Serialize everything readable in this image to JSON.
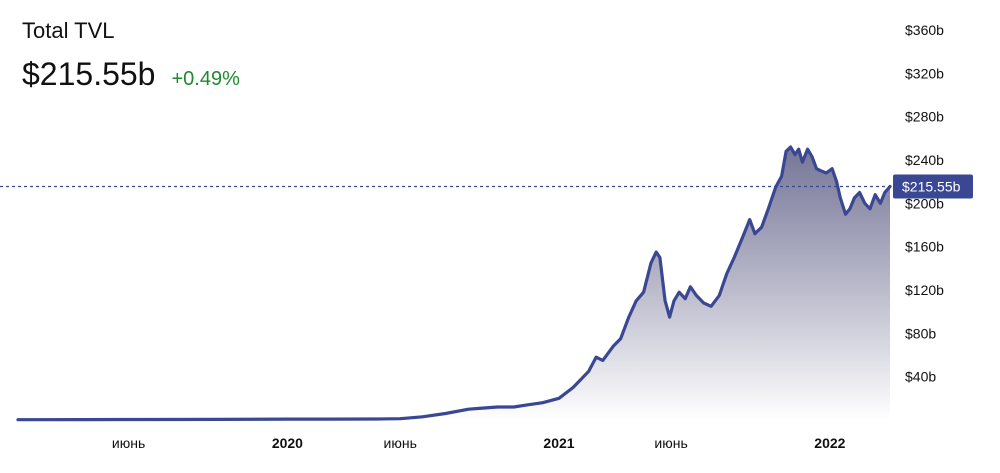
{
  "header": {
    "title": "Total TVL",
    "current_value": "$215.55b",
    "change": "+0.49%",
    "change_color": "#1e8a2e"
  },
  "colors": {
    "line": "#3a4793",
    "area_top": "#6e6e92",
    "marker_bg": "#3a4793"
  },
  "chart_data": {
    "type": "area",
    "title": "Total TVL",
    "xlabel": "",
    "ylabel": "",
    "x_ticks": [
      {
        "date": "2019-06-01",
        "label": "июнь"
      },
      {
        "date": "2020-01-01",
        "label": "2020"
      },
      {
        "date": "2020-06-01",
        "label": "июнь"
      },
      {
        "date": "2021-01-01",
        "label": "2021"
      },
      {
        "date": "2021-06-01",
        "label": "июнь"
      },
      {
        "date": "2022-01-01",
        "label": "2022"
      }
    ],
    "y_ticks": [
      {
        "value": 40,
        "label": "$40b"
      },
      {
        "value": 80,
        "label": "$80b"
      },
      {
        "value": 120,
        "label": "$120b"
      },
      {
        "value": 160,
        "label": "$160b"
      },
      {
        "value": 200,
        "label": "$200b"
      },
      {
        "value": 240,
        "label": "$240b"
      },
      {
        "value": 280,
        "label": "$280b"
      },
      {
        "value": 320,
        "label": "$320b"
      },
      {
        "value": 360,
        "label": "$360b"
      }
    ],
    "xlim": [
      "2019-01-03",
      "2022-03-23"
    ],
    "ylim": [
      0,
      365
    ],
    "current": {
      "value": 215.55,
      "label": "$215.55b"
    },
    "series": [
      {
        "values": [
          [
            "2019-01-03",
            0.3
          ],
          [
            "2019-04-01",
            0.4
          ],
          [
            "2019-07-01",
            0.5
          ],
          [
            "2019-10-01",
            0.6
          ],
          [
            "2020-01-01",
            0.8
          ],
          [
            "2020-03-01",
            0.8
          ],
          [
            "2020-05-01",
            0.9
          ],
          [
            "2020-06-01",
            1.2
          ],
          [
            "2020-07-01",
            3.0
          ],
          [
            "2020-08-01",
            6.0
          ],
          [
            "2020-09-01",
            10.0
          ],
          [
            "2020-09-20",
            11.0
          ],
          [
            "2020-10-10",
            12.0
          ],
          [
            "2020-11-01",
            12.0
          ],
          [
            "2020-11-20",
            14.0
          ],
          [
            "2020-12-10",
            16.0
          ],
          [
            "2021-01-01",
            20.0
          ],
          [
            "2021-01-20",
            30.0
          ],
          [
            "2021-02-10",
            45.0
          ],
          [
            "2021-02-20",
            58.0
          ],
          [
            "2021-03-01",
            55.0
          ],
          [
            "2021-03-15",
            68.0
          ],
          [
            "2021-03-25",
            75.0
          ],
          [
            "2021-04-05",
            95.0
          ],
          [
            "2021-04-15",
            110.0
          ],
          [
            "2021-04-25",
            118.0
          ],
          [
            "2021-05-05",
            145.0
          ],
          [
            "2021-05-12",
            155.0
          ],
          [
            "2021-05-17",
            150.0
          ],
          [
            "2021-05-24",
            110.0
          ],
          [
            "2021-05-30",
            95.0
          ],
          [
            "2021-06-05",
            110.0
          ],
          [
            "2021-06-12",
            118.0
          ],
          [
            "2021-06-20",
            112.0
          ],
          [
            "2021-06-27",
            123.0
          ],
          [
            "2021-07-05",
            115.0
          ],
          [
            "2021-07-15",
            108.0
          ],
          [
            "2021-07-25",
            105.0
          ],
          [
            "2021-08-05",
            115.0
          ],
          [
            "2021-08-15",
            135.0
          ],
          [
            "2021-08-25",
            150.0
          ],
          [
            "2021-09-05",
            168.0
          ],
          [
            "2021-09-15",
            185.0
          ],
          [
            "2021-09-22",
            172.0
          ],
          [
            "2021-10-01",
            178.0
          ],
          [
            "2021-10-10",
            195.0
          ],
          [
            "2021-10-20",
            215.0
          ],
          [
            "2021-10-28",
            225.0
          ],
          [
            "2021-11-03",
            248.0
          ],
          [
            "2021-11-09",
            252.0
          ],
          [
            "2021-11-15",
            245.0
          ],
          [
            "2021-11-20",
            250.0
          ],
          [
            "2021-11-25",
            238.0
          ],
          [
            "2021-12-02",
            250.0
          ],
          [
            "2021-12-08",
            243.0
          ],
          [
            "2021-12-14",
            232.0
          ],
          [
            "2021-12-20",
            230.0
          ],
          [
            "2021-12-27",
            228.0
          ],
          [
            "2022-01-04",
            232.0
          ],
          [
            "2022-01-10",
            220.0
          ],
          [
            "2022-01-15",
            205.0
          ],
          [
            "2022-01-22",
            190.0
          ],
          [
            "2022-01-28",
            195.0
          ],
          [
            "2022-02-03",
            205.0
          ],
          [
            "2022-02-10",
            210.0
          ],
          [
            "2022-02-17",
            200.0
          ],
          [
            "2022-02-24",
            195.0
          ],
          [
            "2022-03-03",
            208.0
          ],
          [
            "2022-03-10",
            200.0
          ],
          [
            "2022-03-16",
            210.0
          ],
          [
            "2022-03-23",
            215.55
          ]
        ]
      }
    ]
  }
}
